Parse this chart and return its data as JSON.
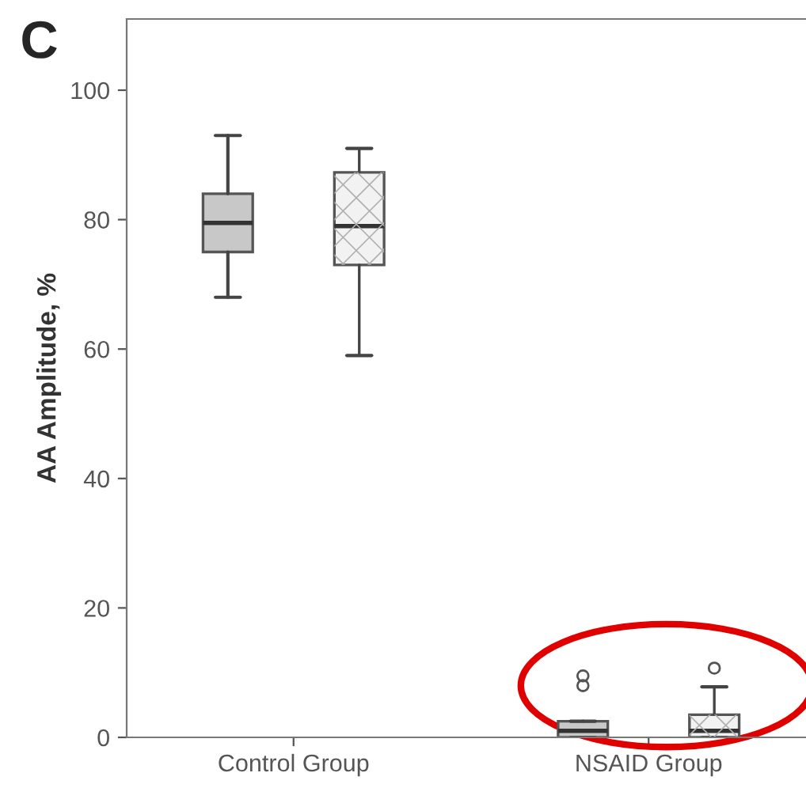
{
  "chart_data": {
    "type": "box",
    "title": "C",
    "ylabel": "AA Amplitude, %",
    "categories": [
      "Control Group",
      "NSAID Group"
    ],
    "series": [
      {
        "color": "#c8c8c8",
        "boxes": [
          {
            "low": 68,
            "q1": 75,
            "median": 79.5,
            "q3": 84,
            "high": 93
          },
          {
            "low": 0,
            "q1": 0,
            "median": 1,
            "q3": 2.5,
            "high": 2.5,
            "outliers": [
              8,
              9.5
            ]
          }
        ]
      },
      {
        "color": "#f2f2f2",
        "boxes": [
          {
            "low": 59,
            "q1": 73,
            "median": 79,
            "q3": 87.3,
            "high": 91
          },
          {
            "low": 0,
            "q1": 0,
            "median": 1,
            "q3": 3.5,
            "high": 7.8,
            "outliers": [
              10.7
            ]
          }
        ]
      }
    ],
    "ylim": [
      0,
      111
    ],
    "yticks": [
      0,
      20,
      40,
      60,
      80,
      100
    ],
    "grid": false,
    "legend": false
  }
}
